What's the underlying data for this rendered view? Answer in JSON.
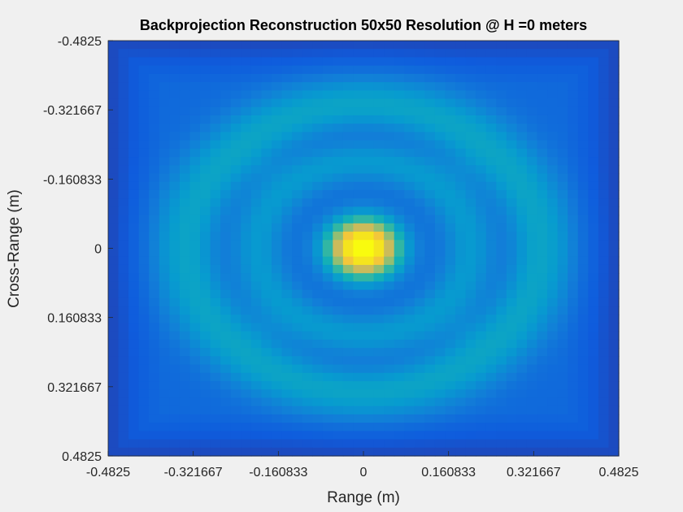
{
  "chart_data": {
    "type": "heatmap",
    "title": "Backprojection Reconstruction 50x50 Resolution @ H =0 meters",
    "xlabel": "Range (m)",
    "ylabel": "Cross-Range (m)",
    "xlim": [
      -0.4825,
      0.4825
    ],
    "ylim": [
      -0.4825,
      0.4825
    ],
    "y_direction": "reverse",
    "grid_size": [
      50,
      50
    ],
    "colormap": "parula",
    "xticks": [
      -0.4825,
      -0.321667,
      -0.160833,
      0,
      0.160833,
      0.321667,
      0.4825
    ],
    "xtick_labels": [
      "-0.4825",
      "-0.321667",
      "-0.160833",
      "0",
      "0.160833",
      "0.321667",
      "0.4825"
    ],
    "yticks": [
      -0.4825,
      -0.321667,
      -0.160833,
      0,
      0.160833,
      0.321667,
      0.4825
    ],
    "ytick_labels": [
      "-0.4825",
      "-0.321667",
      "-0.160833",
      "0",
      "0.160833",
      "0.321667",
      "0.4825"
    ],
    "peak": {
      "x": 0,
      "y": 0,
      "sigma": 0.045,
      "amplitude": 0.95
    },
    "rings": [
      {
        "radius": 0.2,
        "width": 0.035,
        "amplitude": 0.15
      },
      {
        "radius": 0.33,
        "width": 0.05,
        "amplitude": 0.2
      }
    ],
    "background_level": 0.14
  }
}
